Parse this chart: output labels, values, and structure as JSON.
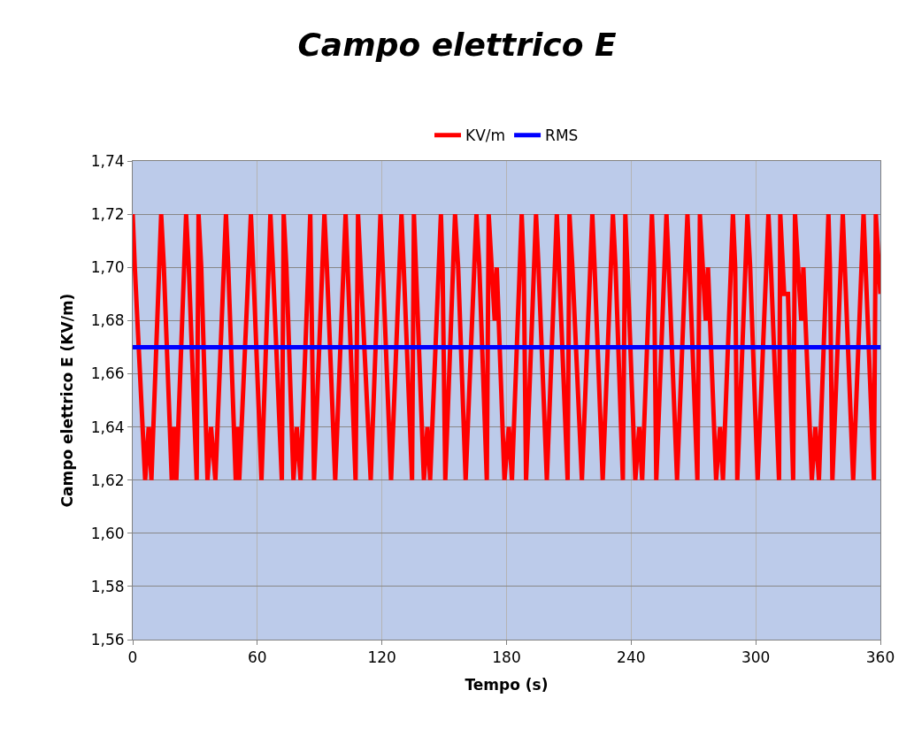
{
  "chart_data": {
    "type": "line",
    "title": "Campo elettrico E",
    "xlabel": "Tempo (s)",
    "ylabel": "Campo elettrico E (KV/m)",
    "series": [
      {
        "name": "KV/m",
        "color": "#ff0000",
        "x": [
          0,
          1,
          6,
          7.7,
          9,
          13.7,
          15,
          18.8,
          20,
          21,
          25.7,
          27,
          30.8,
          31.7,
          33,
          36,
          37.7,
          39.8,
          44.9,
          46,
          49.6,
          50.5,
          51.3,
          56.9,
          58,
          62,
          66.3,
          67.5,
          71.8,
          72.7,
          74,
          77.4,
          79,
          80.8,
          85.5,
          87.3,
          92.3,
          93.5,
          97.5,
          102.5,
          103.5,
          107.3,
          108.5,
          109.7,
          114.6,
          119.3,
          120.4,
          124.4,
          129.4,
          130.5,
          134.5,
          135.4,
          140.2,
          141.9,
          143.2,
          148.4,
          149.2,
          150.5,
          155.2,
          156.7,
          160.3,
          165.5,
          166.9,
          170.5,
          171.4,
          174.3,
          175.3,
          179,
          181.1,
          182.6,
          187.3,
          188.3,
          189.4,
          194.2,
          195.4,
          199.4,
          204.2,
          205.3,
          209.4,
          210.3,
          211.7,
          216.3,
          221.3,
          222.4,
          226.3,
          231.2,
          232.5,
          236,
          237.2,
          238.2,
          242,
          243.9,
          245.3,
          250,
          251,
          252.1,
          257,
          258.1,
          262.1,
          267.1,
          268.1,
          271.9,
          273.1,
          275.9,
          277,
          280.9,
          282.8,
          284.2,
          289,
          290.1,
          291.1,
          296,
          297.3,
          300.9,
          306.1,
          307.3,
          311.2,
          311.8,
          313.7,
          315.5,
          318,
          318.9,
          321.9,
          322.9,
          327,
          328.7,
          330.4,
          335,
          335.7,
          336.9,
          341.9,
          342.9,
          346.9,
          351.9,
          352.9,
          356.9,
          357.8,
          360
        ],
        "values": [
          1.72,
          1.7,
          1.62,
          1.64,
          1.62,
          1.72,
          1.7,
          1.62,
          1.64,
          1.62,
          1.72,
          1.7,
          1.62,
          1.72,
          1.7,
          1.62,
          1.64,
          1.62,
          1.72,
          1.7,
          1.62,
          1.64,
          1.62,
          1.72,
          1.7,
          1.62,
          1.72,
          1.7,
          1.62,
          1.72,
          1.7,
          1.62,
          1.64,
          1.62,
          1.72,
          1.62,
          1.72,
          1.7,
          1.62,
          1.72,
          1.7,
          1.62,
          1.72,
          1.7,
          1.62,
          1.72,
          1.7,
          1.62,
          1.72,
          1.7,
          1.62,
          1.72,
          1.62,
          1.64,
          1.62,
          1.72,
          1.7,
          1.62,
          1.72,
          1.7,
          1.62,
          1.72,
          1.7,
          1.62,
          1.72,
          1.68,
          1.7,
          1.62,
          1.64,
          1.62,
          1.72,
          1.7,
          1.62,
          1.72,
          1.7,
          1.62,
          1.72,
          1.7,
          1.62,
          1.72,
          1.7,
          1.62,
          1.72,
          1.7,
          1.62,
          1.72,
          1.7,
          1.62,
          1.72,
          1.7,
          1.62,
          1.64,
          1.62,
          1.72,
          1.7,
          1.62,
          1.72,
          1.7,
          1.62,
          1.72,
          1.7,
          1.62,
          1.72,
          1.68,
          1.7,
          1.62,
          1.64,
          1.62,
          1.72,
          1.7,
          1.62,
          1.72,
          1.7,
          1.62,
          1.72,
          1.7,
          1.62,
          1.72,
          1.69,
          1.69,
          1.62,
          1.72,
          1.68,
          1.7,
          1.62,
          1.64,
          1.62,
          1.72,
          1.7,
          1.62,
          1.72,
          1.7,
          1.62,
          1.72,
          1.7,
          1.62,
          1.72,
          1.69
        ]
      },
      {
        "name": "RMS",
        "color": "#0000ff",
        "x": [
          0,
          360
        ],
        "values": [
          1.67,
          1.67
        ]
      }
    ],
    "xlim": [
      0,
      360
    ],
    "xticks": [
      0,
      60,
      120,
      180,
      240,
      300,
      360
    ],
    "ylim": [
      1.56,
      1.74
    ],
    "yticks": [
      {
        "value": 1.56,
        "label": "1,56"
      },
      {
        "value": 1.58,
        "label": "1,58"
      },
      {
        "value": 1.6,
        "label": "1,60"
      },
      {
        "value": 1.62,
        "label": "1,62"
      },
      {
        "value": 1.64,
        "label": "1,64"
      },
      {
        "value": 1.66,
        "label": "1,66"
      },
      {
        "value": 1.68,
        "label": "1,68"
      },
      {
        "value": 1.7,
        "label": "1,70"
      },
      {
        "value": 1.72,
        "label": "1,72"
      },
      {
        "value": 1.74,
        "label": "1,74"
      }
    ],
    "grid": true,
    "legend": "top",
    "marker": "none",
    "line_style": "solid"
  }
}
